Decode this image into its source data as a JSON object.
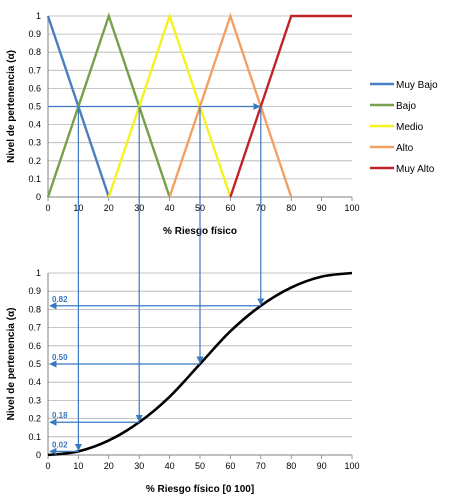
{
  "chart_data": [
    {
      "type": "line",
      "title": "",
      "xlabel": "% Riesgo físico",
      "ylabel": "Nivel de pertenencia  (α)",
      "xlim": [
        0,
        100
      ],
      "ylim": [
        0,
        1
      ],
      "xticks": [
        0,
        10,
        20,
        30,
        40,
        50,
        60,
        70,
        80,
        90,
        100
      ],
      "yticks": [
        0,
        0.1,
        0.2,
        0.3,
        0.4,
        0.5,
        0.6,
        0.7,
        0.8,
        0.9,
        1
      ],
      "grid": true,
      "legend": "right",
      "series": [
        {
          "name": "Muy Bajo",
          "color": "#4a7dc1",
          "x": [
            0,
            20
          ],
          "y": [
            1,
            0
          ]
        },
        {
          "name": "Bajo",
          "color": "#77a04a",
          "x": [
            0,
            20,
            40
          ],
          "y": [
            0,
            1,
            0
          ]
        },
        {
          "name": "Medio",
          "color": "#f5f21f",
          "x": [
            20,
            40,
            60
          ],
          "y": [
            0,
            1,
            0
          ]
        },
        {
          "name": "Alto",
          "color": "#f2a063",
          "x": [
            40,
            60,
            80
          ],
          "y": [
            0,
            1,
            0
          ]
        },
        {
          "name": "Muy Alto",
          "color": "#c0242a",
          "x": [
            60,
            80,
            100
          ],
          "y": [
            0,
            1,
            1
          ]
        }
      ],
      "guide_line": {
        "color": "#3a78c0",
        "y": 0.5,
        "x": [
          0,
          70
        ]
      }
    },
    {
      "type": "line",
      "title": "",
      "xlabel": "% Riesgo físico [0 100]",
      "ylabel": "Nivel de pertenencia  (α)",
      "xlim": [
        0,
        100
      ],
      "ylim": [
        0,
        1
      ],
      "xticks": [
        0,
        10,
        20,
        30,
        40,
        50,
        60,
        70,
        80,
        90,
        100
      ],
      "yticks": [
        0,
        0.1,
        0.2,
        0.3,
        0.4,
        0.5,
        0.6,
        0.7,
        0.8,
        0.9,
        1
      ],
      "grid": true,
      "series": [
        {
          "color": "#000000",
          "x": [
            0,
            10,
            20,
            30,
            40,
            50,
            60,
            70,
            80,
            90,
            100
          ],
          "y": [
            0,
            0.02,
            0.08,
            0.18,
            0.32,
            0.5,
            0.68,
            0.82,
            0.92,
            0.98,
            1
          ]
        }
      ],
      "annotations": [
        {
          "text": "0.82",
          "x": 70,
          "y": 0.82
        },
        {
          "text": "0.50",
          "x": 50,
          "y": 0.5
        },
        {
          "text": "0.18",
          "x": 30,
          "y": 0.18
        },
        {
          "text": "0.02",
          "x": 10,
          "y": 0.02
        }
      ],
      "annotation_color": "#3a78c0"
    }
  ]
}
